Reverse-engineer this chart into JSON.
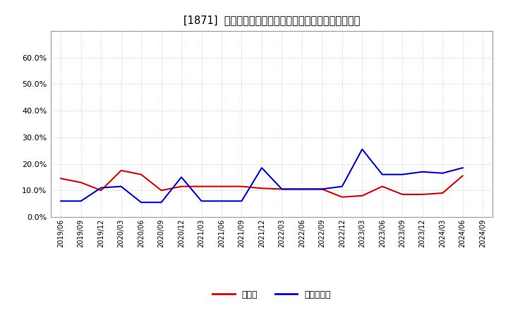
{
  "title": "[1871]  現預金、有利子負債の総資産に対する比率の推移",
  "legend_cash": "現預金",
  "legend_debt": "有利子負債",
  "background_color": "#ffffff",
  "plot_bg_color": "#ffffff",
  "grid_color": "#aaaaaa",
  "cash_color": "#dd0000",
  "debt_color": "#0000dd",
  "x_labels": [
    "2019/06",
    "2019/09",
    "2019/12",
    "2020/03",
    "2020/06",
    "2020/09",
    "2020/12",
    "2021/03",
    "2021/06",
    "2021/09",
    "2021/12",
    "2022/03",
    "2022/06",
    "2022/09",
    "2022/12",
    "2023/03",
    "2023/06",
    "2023/09",
    "2023/12",
    "2024/03",
    "2024/06",
    "2024/09"
  ],
  "cash_values": [
    0.145,
    0.13,
    0.1,
    0.175,
    0.16,
    0.1,
    0.115,
    0.115,
    0.115,
    0.115,
    0.108,
    0.105,
    0.105,
    0.105,
    0.075,
    0.08,
    0.115,
    0.085,
    0.085,
    0.09,
    0.155,
    null
  ],
  "debt_values": [
    0.06,
    0.06,
    0.11,
    0.115,
    0.055,
    0.055,
    0.15,
    0.06,
    0.06,
    0.06,
    0.185,
    0.105,
    0.105,
    0.105,
    0.115,
    0.255,
    0.16,
    0.16,
    0.17,
    0.165,
    0.185,
    null
  ],
  "ylim": [
    0.0,
    0.7
  ],
  "yticks": [
    0.0,
    0.1,
    0.2,
    0.3,
    0.4,
    0.5,
    0.6
  ]
}
